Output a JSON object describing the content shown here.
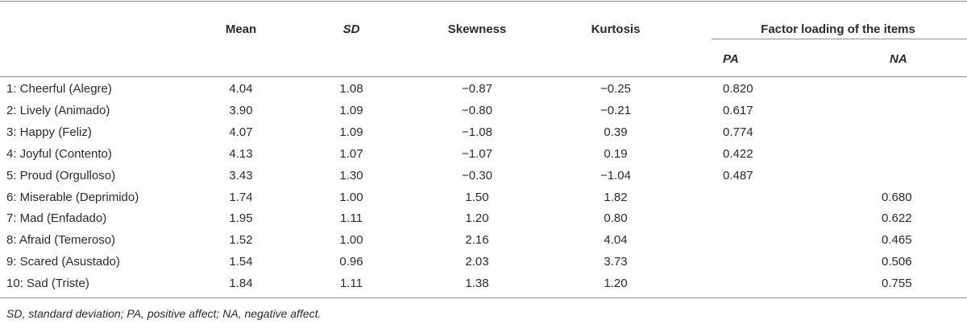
{
  "table": {
    "headers": {
      "mean": "Mean",
      "sd": "SD",
      "skewness": "Skewness",
      "kurtosis": "Kurtosis",
      "factor_loading": "Factor loading of the items",
      "pa": "PA",
      "na": "NA"
    },
    "rows": [
      {
        "label": "1: Cheerful (Alegre)",
        "mean": "4.04",
        "sd": "1.08",
        "skewness": "−0.87",
        "kurtosis": "−0.25",
        "pa": "0.820",
        "na": ""
      },
      {
        "label": "2: Lively (Animado)",
        "mean": "3.90",
        "sd": "1.09",
        "skewness": "−0.80",
        "kurtosis": "−0.21",
        "pa": "0.617",
        "na": ""
      },
      {
        "label": "3: Happy (Feliz)",
        "mean": "4.07",
        "sd": "1.09",
        "skewness": "−1.08",
        "kurtosis": "0.39",
        "pa": "0.774",
        "na": ""
      },
      {
        "label": "4: Joyful (Contento)",
        "mean": "4.13",
        "sd": "1.07",
        "skewness": "−1.07",
        "kurtosis": "0.19",
        "pa": "0.422",
        "na": ""
      },
      {
        "label": "5: Proud (Orgulloso)",
        "mean": "3.43",
        "sd": "1.30",
        "skewness": "−0.30",
        "kurtosis": "−1.04",
        "pa": "0.487",
        "na": ""
      },
      {
        "label": "6: Miserable (Deprimido)",
        "mean": "1.74",
        "sd": "1.00",
        "skewness": "1.50",
        "kurtosis": "1.82",
        "pa": "",
        "na": "0.680"
      },
      {
        "label": "7: Mad (Enfadado)",
        "mean": "1.95",
        "sd": "1.11",
        "skewness": "1.20",
        "kurtosis": "0.80",
        "pa": "",
        "na": "0.622"
      },
      {
        "label": "8: Afraid (Temeroso)",
        "mean": "1.52",
        "sd": "1.00",
        "skewness": "2.16",
        "kurtosis": "4.04",
        "pa": "",
        "na": "0.465"
      },
      {
        "label": "9: Scared (Asustado)",
        "mean": "1.54",
        "sd": "0.96",
        "skewness": "2.03",
        "kurtosis": "3.73",
        "pa": "",
        "na": "0.506"
      },
      {
        "label": "10: Sad (Triste)",
        "mean": "1.84",
        "sd": "1.11",
        "skewness": "1.38",
        "kurtosis": "1.20",
        "pa": "",
        "na": "0.755"
      }
    ]
  },
  "footnote": "SD, standard deviation; PA, positive affect; NA, negative affect."
}
